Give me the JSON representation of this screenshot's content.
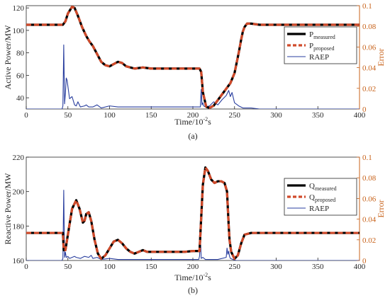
{
  "colors": {
    "measured": "#000000",
    "proposed": "#d04a2a",
    "raep": "#2a3f9f",
    "error_axis": "#c8621a",
    "axis": "#262626",
    "legend_border": "#262626"
  },
  "chart_data": [
    {
      "type": "line",
      "caption": "(a)",
      "xlabel": "Time/10-2s",
      "ylabel": "Active Power/MW",
      "y2label": "Error",
      "xlim": [
        0,
        400
      ],
      "ylim": [
        30,
        122
      ],
      "y2lim": [
        0,
        0.1
      ],
      "xticks": [
        "0",
        "50",
        "100",
        "150",
        "200",
        "250",
        "300",
        "350",
        "400"
      ],
      "yticks": [
        "40",
        "60",
        "80",
        "100",
        "120"
      ],
      "y2ticks": [
        "0",
        "0.02",
        "0.04",
        "0.06",
        "0.08",
        "0.1"
      ],
      "grid": false,
      "legend_position": "right",
      "legend": [
        {
          "main": "P",
          "sub": "measured"
        },
        {
          "main": "P",
          "sub": "proposed"
        },
        {
          "main": "RAEP",
          "sub": ""
        }
      ],
      "series": [
        {
          "name": "P measured",
          "axis": "left",
          "x": [
            0,
            44,
            47,
            50,
            55,
            58,
            62,
            67,
            72,
            76,
            80,
            85,
            90,
            95,
            100,
            105,
            110,
            115,
            120,
            130,
            140,
            150,
            160,
            170,
            180,
            190,
            200,
            208,
            210,
            212,
            216,
            220,
            225,
            230,
            235,
            240,
            245,
            250,
            255,
            258,
            260,
            262,
            265,
            270,
            280,
            300,
            320,
            340,
            360,
            380,
            400
          ],
          "y": [
            105,
            105,
            108,
            115,
            121,
            120,
            113,
            103,
            95,
            90,
            86,
            79,
            72,
            69,
            68,
            70,
            72,
            71,
            68,
            66,
            67,
            66,
            66,
            66,
            66,
            66,
            66,
            66,
            63,
            45,
            32,
            31,
            33,
            38,
            43,
            48,
            53,
            62,
            80,
            92,
            99,
            103,
            106,
            106,
            105,
            105,
            105,
            105,
            105,
            105,
            105
          ]
        },
        {
          "name": "P proposed",
          "axis": "left",
          "x": [
            0,
            44,
            47,
            50,
            55,
            58,
            62,
            67,
            72,
            76,
            80,
            85,
            90,
            95,
            100,
            105,
            110,
            115,
            120,
            130,
            140,
            150,
            160,
            170,
            180,
            190,
            200,
            208,
            210,
            212,
            216,
            220,
            225,
            230,
            235,
            240,
            245,
            250,
            255,
            258,
            260,
            262,
            265,
            270,
            280,
            300,
            320,
            340,
            360,
            380,
            400
          ],
          "y": [
            105,
            105,
            108,
            115,
            121,
            120,
            113,
            103,
            95,
            90,
            86,
            79,
            72,
            69,
            68,
            70,
            72,
            71,
            68,
            66,
            67,
            66,
            66,
            66,
            66,
            66,
            66,
            66,
            63,
            45,
            32,
            31,
            33,
            38,
            43,
            48,
            53,
            62,
            80,
            92,
            99,
            103,
            106,
            106,
            105,
            105,
            105,
            105,
            105,
            105,
            105
          ]
        },
        {
          "name": "RAEP",
          "axis": "right",
          "x": [
            0,
            43,
            44,
            45,
            46,
            47,
            48,
            49,
            50,
            52,
            55,
            58,
            60,
            62,
            65,
            70,
            72,
            75,
            80,
            85,
            90,
            100,
            110,
            120,
            150,
            200,
            209,
            210,
            211,
            212,
            213,
            215,
            220,
            225,
            230,
            235,
            240,
            243,
            245,
            247,
            250,
            255,
            260,
            270,
            280,
            400
          ],
          "y": [
            0,
            0,
            0.003,
            0.062,
            0.005,
            0.015,
            0.03,
            0.028,
            0.022,
            0.01,
            0.012,
            0.004,
            0.003,
            0.007,
            0.002,
            0.003,
            0.004,
            0.002,
            0.002,
            0.004,
            0.001,
            0.003,
            0.002,
            0.002,
            0.002,
            0.002,
            0.002,
            0.019,
            0.004,
            0.006,
            0.003,
            0.002,
            0.003,
            0.007,
            0.004,
            0.009,
            0.013,
            0.018,
            0.012,
            0.016,
            0.006,
            0.003,
            0.001,
            0.001,
            0,
            0
          ]
        }
      ]
    },
    {
      "type": "line",
      "caption": "(b)",
      "xlabel": "Time/10-2s",
      "ylabel": "Reactive Power/MW",
      "y2label": "Error",
      "xlim": [
        0,
        400
      ],
      "ylim": [
        160,
        220
      ],
      "y2lim": [
        0,
        0.1
      ],
      "xticks": [
        "0",
        "50",
        "100",
        "150",
        "200",
        "250",
        "300",
        "350",
        "400"
      ],
      "yticks": [
        "160",
        "180",
        "200",
        "220"
      ],
      "y2ticks": [
        "0",
        "0.02",
        "0.04",
        "0.06",
        "0.08",
        "0.1"
      ],
      "grid": false,
      "legend_position": "right",
      "legend": [
        {
          "main": "Q",
          "sub": "measured"
        },
        {
          "main": "Q",
          "sub": "proposed"
        },
        {
          "main": "RAEP",
          "sub": ""
        }
      ],
      "series": [
        {
          "name": "Q measured",
          "axis": "left",
          "x": [
            0,
            44,
            45,
            47,
            50,
            55,
            60,
            64,
            68,
            70,
            72,
            75,
            78,
            82,
            86,
            90,
            95,
            100,
            105,
            110,
            115,
            120,
            125,
            130,
            135,
            140,
            145,
            150,
            160,
            170,
            180,
            190,
            200,
            208,
            210,
            212,
            215,
            218,
            222,
            226,
            230,
            234,
            238,
            241,
            243,
            244,
            246,
            250,
            254,
            258,
            262,
            270,
            300,
            350,
            400
          ],
          "y": [
            176,
            176,
            166,
            166,
            175,
            190,
            195,
            190,
            182,
            183,
            187,
            188,
            183,
            172,
            164,
            161,
            163,
            167,
            171,
            172,
            170,
            167,
            165,
            164,
            165,
            166,
            165,
            165,
            165,
            165,
            165,
            165,
            165.5,
            165.5,
            185,
            204,
            214,
            212,
            207,
            205,
            206,
            206,
            205,
            200,
            180,
            172,
            165,
            161,
            163,
            170,
            175,
            176,
            176,
            176,
            176
          ]
        },
        {
          "name": "Q proposed",
          "axis": "left",
          "x": [
            0,
            44,
            45,
            47,
            50,
            55,
            60,
            64,
            68,
            70,
            72,
            75,
            78,
            82,
            86,
            90,
            95,
            100,
            105,
            110,
            115,
            120,
            125,
            130,
            135,
            140,
            145,
            150,
            160,
            170,
            180,
            190,
            200,
            208,
            210,
            212,
            215,
            218,
            222,
            226,
            230,
            234,
            238,
            241,
            243,
            244,
            246,
            250,
            254,
            258,
            262,
            270,
            300,
            350,
            400
          ],
          "y": [
            176,
            176,
            166,
            166,
            175,
            190,
            195,
            190,
            182,
            183,
            187,
            188,
            183,
            172,
            164,
            161,
            163,
            167,
            171,
            172,
            170,
            167,
            165,
            164,
            165,
            166,
            165,
            165,
            165,
            165,
            165,
            165,
            165.5,
            165.5,
            185,
            204,
            214,
            212,
            207,
            205,
            206,
            206,
            205,
            200,
            180,
            172,
            165,
            161,
            163,
            170,
            175,
            176,
            176,
            176,
            176
          ]
        },
        {
          "name": "RAEP",
          "axis": "right",
          "x": [
            0,
            43,
            44,
            45,
            46,
            47,
            48,
            50,
            52,
            55,
            58,
            60,
            65,
            70,
            75,
            78,
            80,
            85,
            90,
            100,
            110,
            150,
            200,
            207,
            208,
            209,
            210,
            212,
            215,
            220,
            230,
            240,
            241,
            242,
            243,
            244,
            245,
            248,
            252,
            260,
            400
          ],
          "y": [
            0,
            0,
            0.002,
            0.068,
            0.003,
            0.008,
            0.003,
            0.004,
            0.002,
            0.003,
            0.004,
            0.003,
            0.002,
            0.004,
            0.003,
            0.005,
            0.002,
            0.003,
            0.001,
            0.002,
            0.001,
            0.001,
            0.001,
            0.001,
            0.004,
            0.024,
            0.002,
            0.003,
            0.001,
            0.001,
            0.001,
            0.003,
            0.012,
            0.006,
            0.009,
            0.004,
            0.002,
            0.001,
            0,
            0,
            0
          ]
        }
      ]
    }
  ]
}
